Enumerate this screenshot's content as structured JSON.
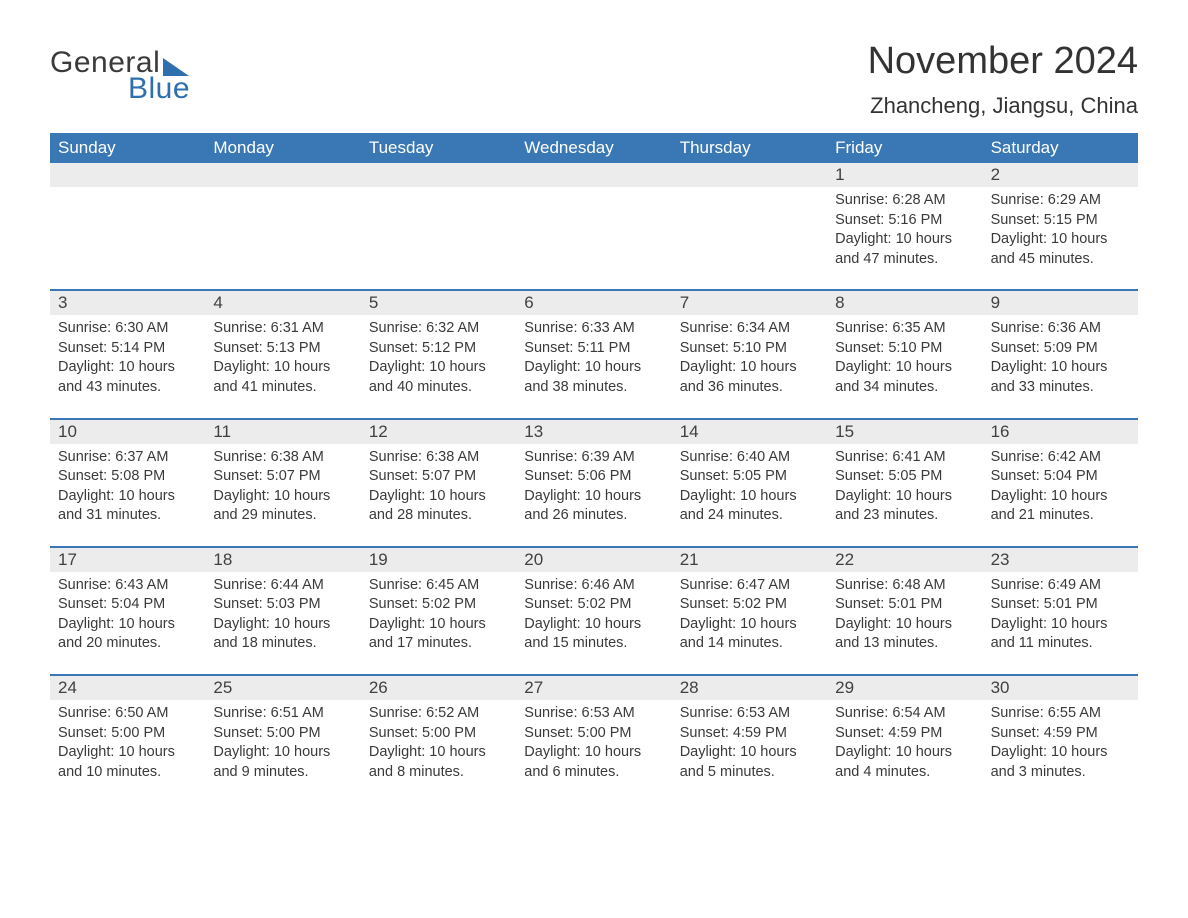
{
  "logo": {
    "text1": "General",
    "text2": "Blue"
  },
  "title": "November 2024",
  "location": "Zhancheng, Jiangsu, China",
  "colors": {
    "header_bg": "#3a78b5",
    "header_text": "#ffffff",
    "daynum_bg": "#ececec",
    "border": "#3a78b5",
    "body_text": "#3a3a3a",
    "title_text": "#333333",
    "logo_gray": "#3a3a3a",
    "logo_blue": "#2f6fae",
    "background": "#ffffff"
  },
  "typography": {
    "title_fontsize": 38,
    "location_fontsize": 22,
    "weekday_fontsize": 17,
    "daynum_fontsize": 17,
    "detail_fontsize": 14.5,
    "logo_fontsize": 30
  },
  "weekdays": [
    "Sunday",
    "Monday",
    "Tuesday",
    "Wednesday",
    "Thursday",
    "Friday",
    "Saturday"
  ],
  "calendar": {
    "type": "table",
    "start_weekday_index": 5,
    "days": [
      {
        "n": 1,
        "sunrise": "6:28 AM",
        "sunset": "5:16 PM",
        "daylight": "10 hours and 47 minutes."
      },
      {
        "n": 2,
        "sunrise": "6:29 AM",
        "sunset": "5:15 PM",
        "daylight": "10 hours and 45 minutes."
      },
      {
        "n": 3,
        "sunrise": "6:30 AM",
        "sunset": "5:14 PM",
        "daylight": "10 hours and 43 minutes."
      },
      {
        "n": 4,
        "sunrise": "6:31 AM",
        "sunset": "5:13 PM",
        "daylight": "10 hours and 41 minutes."
      },
      {
        "n": 5,
        "sunrise": "6:32 AM",
        "sunset": "5:12 PM",
        "daylight": "10 hours and 40 minutes."
      },
      {
        "n": 6,
        "sunrise": "6:33 AM",
        "sunset": "5:11 PM",
        "daylight": "10 hours and 38 minutes."
      },
      {
        "n": 7,
        "sunrise": "6:34 AM",
        "sunset": "5:10 PM",
        "daylight": "10 hours and 36 minutes."
      },
      {
        "n": 8,
        "sunrise": "6:35 AM",
        "sunset": "5:10 PM",
        "daylight": "10 hours and 34 minutes."
      },
      {
        "n": 9,
        "sunrise": "6:36 AM",
        "sunset": "5:09 PM",
        "daylight": "10 hours and 33 minutes."
      },
      {
        "n": 10,
        "sunrise": "6:37 AM",
        "sunset": "5:08 PM",
        "daylight": "10 hours and 31 minutes."
      },
      {
        "n": 11,
        "sunrise": "6:38 AM",
        "sunset": "5:07 PM",
        "daylight": "10 hours and 29 minutes."
      },
      {
        "n": 12,
        "sunrise": "6:38 AM",
        "sunset": "5:07 PM",
        "daylight": "10 hours and 28 minutes."
      },
      {
        "n": 13,
        "sunrise": "6:39 AM",
        "sunset": "5:06 PM",
        "daylight": "10 hours and 26 minutes."
      },
      {
        "n": 14,
        "sunrise": "6:40 AM",
        "sunset": "5:05 PM",
        "daylight": "10 hours and 24 minutes."
      },
      {
        "n": 15,
        "sunrise": "6:41 AM",
        "sunset": "5:05 PM",
        "daylight": "10 hours and 23 minutes."
      },
      {
        "n": 16,
        "sunrise": "6:42 AM",
        "sunset": "5:04 PM",
        "daylight": "10 hours and 21 minutes."
      },
      {
        "n": 17,
        "sunrise": "6:43 AM",
        "sunset": "5:04 PM",
        "daylight": "10 hours and 20 minutes."
      },
      {
        "n": 18,
        "sunrise": "6:44 AM",
        "sunset": "5:03 PM",
        "daylight": "10 hours and 18 minutes."
      },
      {
        "n": 19,
        "sunrise": "6:45 AM",
        "sunset": "5:02 PM",
        "daylight": "10 hours and 17 minutes."
      },
      {
        "n": 20,
        "sunrise": "6:46 AM",
        "sunset": "5:02 PM",
        "daylight": "10 hours and 15 minutes."
      },
      {
        "n": 21,
        "sunrise": "6:47 AM",
        "sunset": "5:02 PM",
        "daylight": "10 hours and 14 minutes."
      },
      {
        "n": 22,
        "sunrise": "6:48 AM",
        "sunset": "5:01 PM",
        "daylight": "10 hours and 13 minutes."
      },
      {
        "n": 23,
        "sunrise": "6:49 AM",
        "sunset": "5:01 PM",
        "daylight": "10 hours and 11 minutes."
      },
      {
        "n": 24,
        "sunrise": "6:50 AM",
        "sunset": "5:00 PM",
        "daylight": "10 hours and 10 minutes."
      },
      {
        "n": 25,
        "sunrise": "6:51 AM",
        "sunset": "5:00 PM",
        "daylight": "10 hours and 9 minutes."
      },
      {
        "n": 26,
        "sunrise": "6:52 AM",
        "sunset": "5:00 PM",
        "daylight": "10 hours and 8 minutes."
      },
      {
        "n": 27,
        "sunrise": "6:53 AM",
        "sunset": "5:00 PM",
        "daylight": "10 hours and 6 minutes."
      },
      {
        "n": 28,
        "sunrise": "6:53 AM",
        "sunset": "4:59 PM",
        "daylight": "10 hours and 5 minutes."
      },
      {
        "n": 29,
        "sunrise": "6:54 AM",
        "sunset": "4:59 PM",
        "daylight": "10 hours and 4 minutes."
      },
      {
        "n": 30,
        "sunrise": "6:55 AM",
        "sunset": "4:59 PM",
        "daylight": "10 hours and 3 minutes."
      }
    ]
  },
  "labels": {
    "sunrise": "Sunrise:",
    "sunset": "Sunset:",
    "daylight": "Daylight:"
  }
}
